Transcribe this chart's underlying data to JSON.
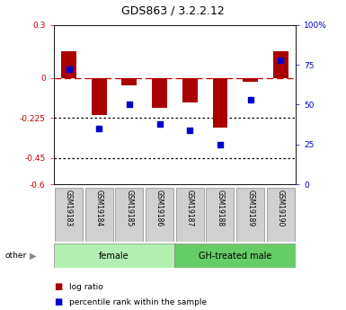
{
  "title": "GDS863 / 3.2.2.12",
  "samples": [
    "GSM19183",
    "GSM19184",
    "GSM19185",
    "GSM19186",
    "GSM19187",
    "GSM19188",
    "GSM19189",
    "GSM19190"
  ],
  "log_ratio": [
    0.15,
    -0.21,
    -0.04,
    -0.17,
    -0.14,
    -0.28,
    -0.02,
    0.15
  ],
  "percentile_rank": [
    72,
    35,
    50,
    38,
    34,
    25,
    53,
    78
  ],
  "groups": [
    {
      "label": "female",
      "start": 0,
      "end": 4,
      "color": "#b2f0b2"
    },
    {
      "label": "GH-treated male",
      "start": 4,
      "end": 8,
      "color": "#66cc66"
    }
  ],
  "ylim_left": [
    -0.6,
    0.3
  ],
  "ylim_right": [
    0,
    100
  ],
  "yticks_left": [
    0.3,
    0.0,
    -0.225,
    -0.45,
    -0.6
  ],
  "ytick_labels_left": [
    "0.3",
    "0",
    "-0.225",
    "-0.45",
    "-0.6"
  ],
  "yticks_right": [
    100,
    75,
    50,
    25,
    0
  ],
  "ytick_labels_right": [
    "100%",
    "75",
    "50",
    "25",
    "0"
  ],
  "hlines": [
    0.0,
    -0.225,
    -0.45
  ],
  "hlines_styles": [
    "dashed",
    "dotted",
    "dotted"
  ],
  "hlines_colors": [
    "#cc0000",
    "black",
    "black"
  ],
  "bar_color": "#aa0000",
  "dot_color": "#0000cc",
  "bar_width": 0.5,
  "dot_size": 18,
  "left_tick_color": "#cc0000",
  "right_tick_color": "#0000cc",
  "other_label": "other",
  "legend_items": [
    "log ratio",
    "percentile rank within the sample"
  ],
  "legend_colors": [
    "#aa0000",
    "#0000cc"
  ],
  "sample_box_color": "#d0d0d0",
  "tick_fontsize": 6.5,
  "label_fontsize": 5.5,
  "group_fontsize": 7,
  "title_fontsize": 9
}
